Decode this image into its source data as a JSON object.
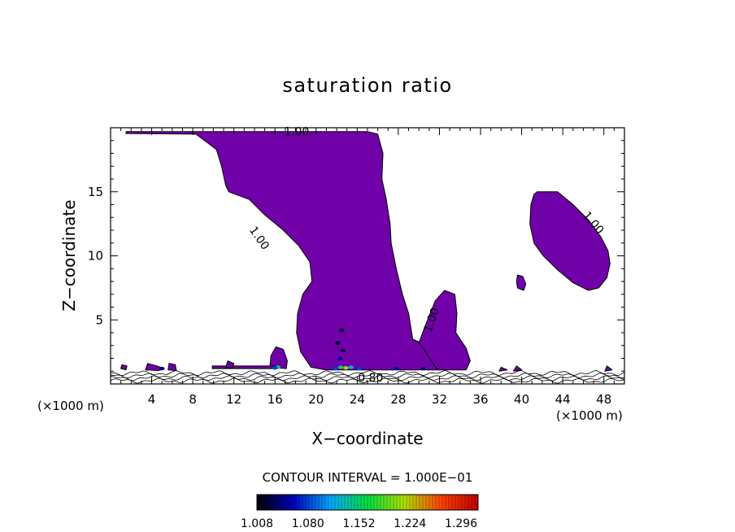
{
  "chart_data": {
    "type": "heatmap",
    "title": "saturation ratio",
    "xlabel": "X−coordinate",
    "ylabel": "Z−coordinate",
    "x_unit_left": "(×1000 m)",
    "x_unit_right": "(×1000 m)",
    "xlim": [
      0,
      50
    ],
    "ylim": [
      0,
      20
    ],
    "x_ticks": [
      4,
      8,
      12,
      16,
      20,
      24,
      28,
      32,
      36,
      40,
      44,
      48
    ],
    "y_ticks": [
      5,
      10,
      15
    ],
    "contour_interval_text": "CONTOUR INTERVAL = 1.000E−01",
    "contour_labels": [
      "1.00",
      "1.00",
      "1.00",
      "1.00",
      "0.80"
    ],
    "colorbar_ticks": [
      "1.008",
      "1.080",
      "1.152",
      "1.224",
      "1.296"
    ],
    "colorbar_range": [
      1.008,
      1.32
    ],
    "colors": {
      "fill_supersaturated": "#7000a8",
      "contour_line": "#000000",
      "colorbar_stops": [
        "#000000",
        "#0000c0",
        "#00a8ff",
        "#00e040",
        "#b0e000",
        "#ff4000",
        "#c00000"
      ]
    },
    "regions": [
      {
        "name": "main-plume",
        "polygon": [
          [
            1.5,
            19.7
          ],
          [
            25,
            19.7
          ],
          [
            26,
            19.5
          ],
          [
            26.5,
            18
          ],
          [
            26.4,
            16
          ],
          [
            26.8,
            14.5
          ],
          [
            27.2,
            12.5
          ],
          [
            27.3,
            11
          ],
          [
            27.8,
            9
          ],
          [
            28.4,
            7
          ],
          [
            29,
            5.5
          ],
          [
            29.4,
            3.5
          ],
          [
            30.5,
            3.1
          ],
          [
            31.2,
            2.6
          ],
          [
            31.6,
            1.7
          ],
          [
            32,
            1.1
          ],
          [
            21,
            1.1
          ],
          [
            19.5,
            1.3
          ],
          [
            18.5,
            2.5
          ],
          [
            18.1,
            4
          ],
          [
            18.2,
            5.5
          ],
          [
            18.7,
            7
          ],
          [
            19.6,
            8
          ],
          [
            19.4,
            9.5
          ],
          [
            18.3,
            10.8
          ],
          [
            16.8,
            12
          ],
          [
            15,
            13.2
          ],
          [
            13.5,
            14.4
          ],
          [
            11.5,
            15
          ],
          [
            11.2,
            15.5
          ],
          [
            10.8,
            17
          ],
          [
            10.3,
            18.3
          ],
          [
            8.3,
            19.5
          ],
          [
            1.5,
            19.55
          ]
        ]
      },
      {
        "name": "right-cell",
        "polygon": [
          [
            41.5,
            15
          ],
          [
            43.5,
            15
          ],
          [
            45,
            14
          ],
          [
            46.5,
            12.8
          ],
          [
            47.7,
            11.5
          ],
          [
            48.4,
            10.4
          ],
          [
            48.6,
            9.4
          ],
          [
            48.3,
            8.3
          ],
          [
            47.5,
            7.5
          ],
          [
            46.5,
            7.3
          ],
          [
            45,
            7.9
          ],
          [
            43.5,
            8.9
          ],
          [
            42.1,
            10
          ],
          [
            41.2,
            11
          ],
          [
            40.8,
            12.5
          ],
          [
            40.9,
            14
          ],
          [
            41.2,
            14.8
          ]
        ]
      },
      {
        "name": "small-blob",
        "polygon": [
          [
            39.6,
            8.5
          ],
          [
            40.1,
            8.4
          ],
          [
            40.4,
            7.8
          ],
          [
            40.2,
            7.3
          ],
          [
            39.6,
            7.5
          ],
          [
            39.5,
            8
          ]
        ]
      },
      {
        "name": "side-cell",
        "polygon": [
          [
            30,
            3.2
          ],
          [
            30.6,
            4.5
          ],
          [
            31.6,
            6.5
          ],
          [
            32.5,
            7.3
          ],
          [
            33.5,
            7
          ],
          [
            33.7,
            5.5
          ],
          [
            33.6,
            4
          ],
          [
            34.6,
            2.8
          ],
          [
            35,
            1.8
          ],
          [
            34.6,
            1.1
          ],
          [
            31.8,
            1.1
          ],
          [
            31.2,
            1.8
          ],
          [
            30.5,
            2.7
          ]
        ]
      },
      {
        "name": "left-bump",
        "polygon": [
          [
            15.5,
            1.3
          ],
          [
            15.6,
            2.2
          ],
          [
            16.1,
            2.9
          ],
          [
            16.8,
            2.7
          ],
          [
            17.2,
            1.8
          ],
          [
            17.1,
            1.2
          ]
        ]
      },
      {
        "name": "low-band-1",
        "polygon": [
          [
            9.9,
            1.2
          ],
          [
            9.9,
            1.4
          ],
          [
            16,
            1.4
          ],
          [
            16,
            1.2
          ]
        ]
      },
      {
        "name": "low-blob-2",
        "polygon": [
          [
            3.4,
            1.1
          ],
          [
            3.6,
            1.6
          ],
          [
            4.5,
            1.4
          ],
          [
            5.2,
            1.2
          ],
          [
            4.7,
            1.05
          ]
        ]
      },
      {
        "name": "low-blob-3",
        "polygon": [
          [
            5.6,
            1.1
          ],
          [
            5.7,
            1.6
          ],
          [
            6.3,
            1.5
          ],
          [
            6.4,
            1.05
          ]
        ]
      },
      {
        "name": "low-blob-4",
        "polygon": [
          [
            1,
            1.2
          ],
          [
            1.1,
            1.5
          ],
          [
            1.6,
            1.4
          ],
          [
            1.5,
            1.1
          ]
        ]
      },
      {
        "name": "low-blob-5",
        "polygon": [
          [
            11.2,
            1.3
          ],
          [
            11.4,
            1.8
          ],
          [
            12,
            1.6
          ],
          [
            11.9,
            1.25
          ]
        ]
      },
      {
        "name": "low-blob-6",
        "polygon": [
          [
            37.8,
            1.0
          ],
          [
            38,
            1.3
          ],
          [
            38.6,
            1.1
          ]
        ]
      },
      {
        "name": "low-blob-7",
        "polygon": [
          [
            39.2,
            1.0
          ],
          [
            39.5,
            1.4
          ],
          [
            40,
            1.1
          ]
        ]
      },
      {
        "name": "low-blob-8",
        "polygon": [
          [
            48.1,
            1.0
          ],
          [
            48.3,
            1.4
          ],
          [
            48.8,
            1.1
          ]
        ]
      }
    ],
    "hotspots": [
      {
        "x": 21.9,
        "z": 1.2,
        "value": 1.08
      },
      {
        "x": 22.4,
        "z": 1.3,
        "value": 1.15
      },
      {
        "x": 22.9,
        "z": 1.25,
        "value": 1.22
      },
      {
        "x": 23.4,
        "z": 1.3,
        "value": 1.12
      },
      {
        "x": 24.2,
        "z": 1.2,
        "value": 1.08
      },
      {
        "x": 22.3,
        "z": 2.0,
        "value": 1.05
      },
      {
        "x": 22.6,
        "z": 2.6,
        "value": 1.03
      },
      {
        "x": 22.1,
        "z": 3.2,
        "value": 1.02
      },
      {
        "x": 22.5,
        "z": 4.2,
        "value": 1.02
      },
      {
        "x": 16.3,
        "z": 1.3,
        "value": 1.15
      },
      {
        "x": 16.0,
        "z": 1.25,
        "value": 1.08
      },
      {
        "x": 5.0,
        "z": 1.2,
        "value": 1.05
      },
      {
        "x": 27.8,
        "z": 1.2,
        "value": 1.05
      },
      {
        "x": 30.4,
        "z": 1.2,
        "value": 1.04
      }
    ]
  }
}
